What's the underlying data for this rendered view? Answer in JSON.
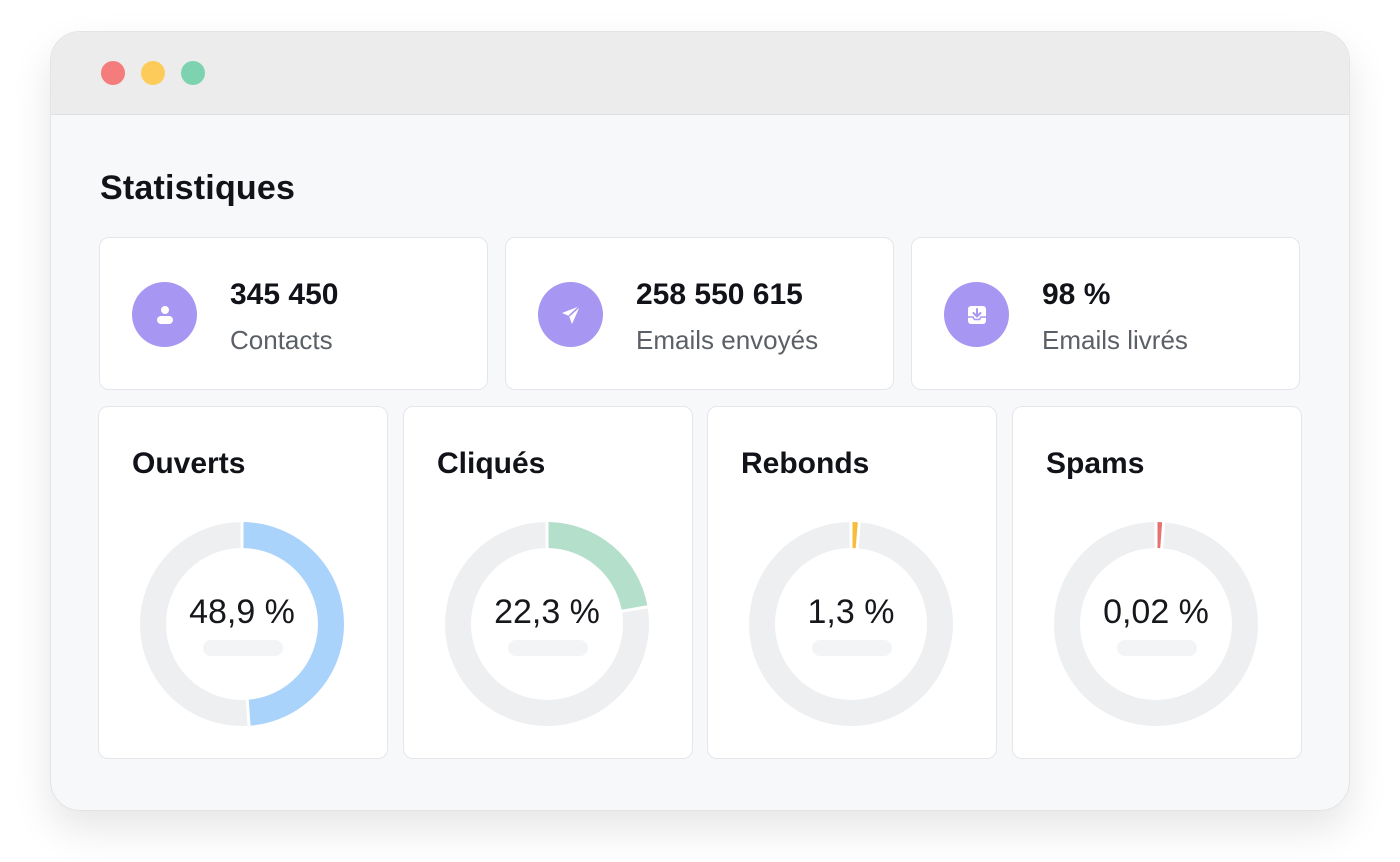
{
  "window": {
    "controls": [
      {
        "name": "close",
        "color": "#f47c7c"
      },
      {
        "name": "minimize",
        "color": "#fccb5a"
      },
      {
        "name": "maximize",
        "color": "#7dd3b0"
      }
    ]
  },
  "page": {
    "title": "Statistiques"
  },
  "colors": {
    "icon_bg": "#a896f3",
    "track": "#eeeff1",
    "ouverts": "#a9d3fb",
    "cliques": "#b3dfcb",
    "rebonds": "#f7bd3a",
    "spams": "#e57272"
  },
  "stats": [
    {
      "value": "345 450",
      "label": "Contacts",
      "icon": "user-icon"
    },
    {
      "value": "258 550 615",
      "label": "Emails envoyés",
      "icon": "paper-plane-icon"
    },
    {
      "value": "98 %",
      "label": "Emails livrés",
      "icon": "inbox-download-icon"
    }
  ],
  "chart_data": [
    {
      "type": "pie",
      "title": "Ouverts",
      "value_label": "48,9 %",
      "value": 48.9,
      "color": "#a9d3fb"
    },
    {
      "type": "pie",
      "title": "Cliqués",
      "value_label": "22,3 %",
      "value": 22.3,
      "color": "#b3dfcb"
    },
    {
      "type": "pie",
      "title": "Rebonds",
      "value_label": "1,3 %",
      "value": 1.3,
      "color": "#f7bd3a"
    },
    {
      "type": "pie",
      "title": "Spams",
      "value_label": "0,02 %",
      "value": 0.02,
      "color": "#e57272"
    }
  ]
}
